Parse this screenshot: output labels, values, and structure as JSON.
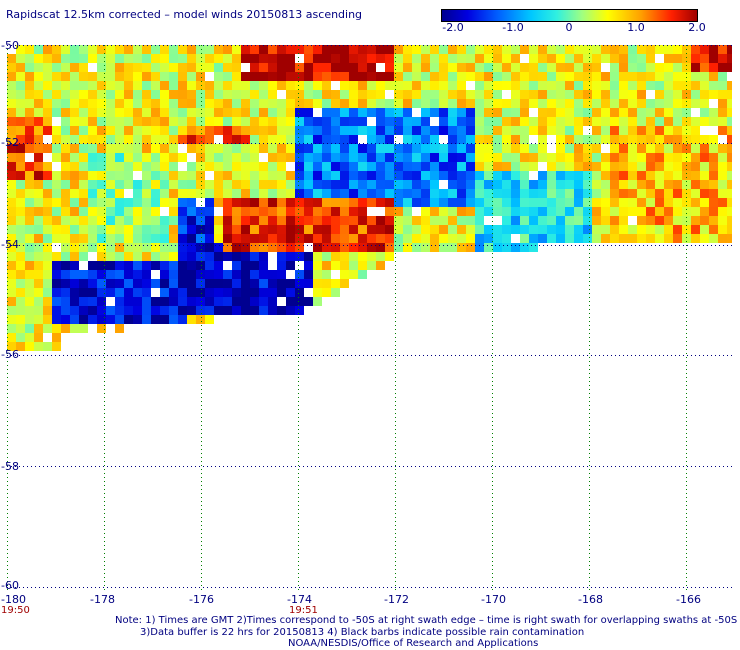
{
  "title": "Rapidscat 12.5km corrected – model winds 20150813 ascending",
  "colorbar": {
    "ticks": [
      "-2.0",
      "-1.0",
      "0",
      "1.0",
      "2.0"
    ],
    "colors": [
      "#000090",
      "#0000e0",
      "#0060ff",
      "#00c8ff",
      "#30f0e0",
      "#a0ff80",
      "#ffff00",
      "#ffa000",
      "#ff2000",
      "#a00000"
    ]
  },
  "map": {
    "lon_labels": [
      "-180",
      "-178",
      "-176",
      "-174",
      "-172",
      "-170",
      "-168",
      "-166"
    ],
    "lat_labels": [
      "-50",
      "-52",
      "-54",
      "-56",
      "-58",
      "-60"
    ],
    "time_labels": [
      "19:50",
      "19:51"
    ],
    "grid_color": "#008000"
  },
  "notes": {
    "line1": "Note: 1) Times are GMT 2)Times correspond to -50S at right swath edge – time is right swath for overlapping swaths at -50S",
    "line2": "3)Data buffer is 22 hrs for 20150813 4) Black barbs indicate possible rain contamination",
    "line3": "NOAA/NESDIS/Office of Research and Applications"
  }
}
